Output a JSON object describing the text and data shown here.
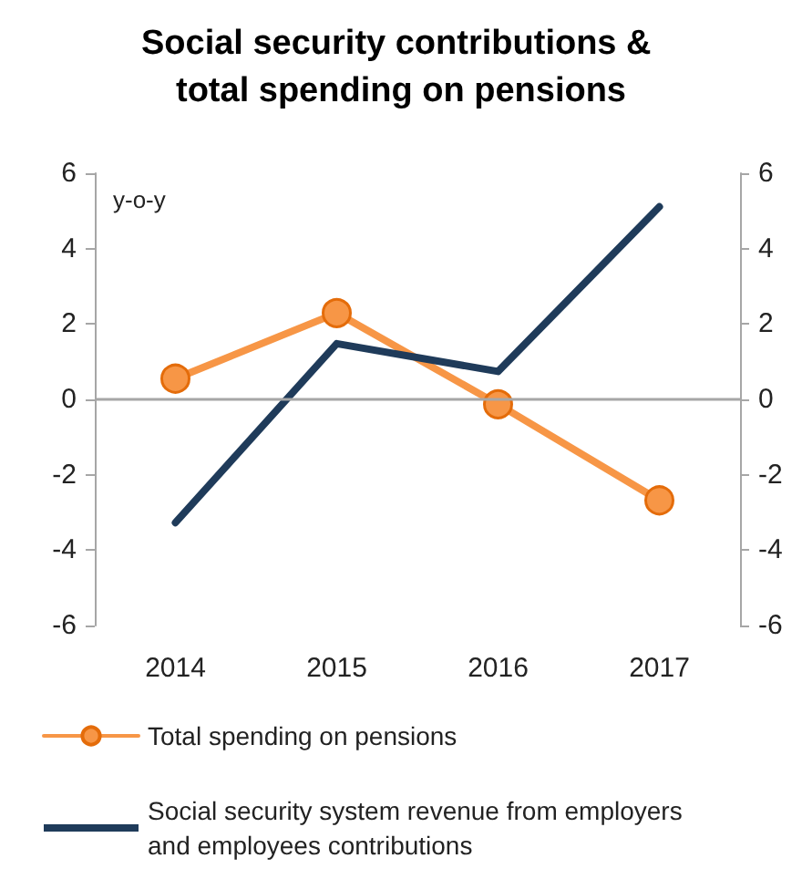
{
  "chart_data": {
    "type": "line",
    "title": "Social security contributions & total spending on pensions",
    "ylabel": "y-o-y",
    "categories": [
      "2014",
      "2015",
      "2016",
      "2017"
    ],
    "series": [
      {
        "name": "Total spending on pensions",
        "color": "#f79646",
        "marker": "circle",
        "values": [
          0.55,
          2.29,
          -0.13,
          -2.68
        ]
      },
      {
        "name": "Social security system revenue from employers and employees contributions",
        "color": "#1f3b5a",
        "marker": "none",
        "values": [
          -3.27,
          1.48,
          0.74,
          5.11
        ]
      }
    ],
    "ylim": [
      -6,
      6
    ],
    "yticks": [
      -6,
      -4,
      -2,
      0,
      2,
      4,
      6
    ],
    "y2lim": [
      -6,
      6
    ],
    "y2ticks": [
      -6,
      -4,
      -2,
      0,
      2,
      4,
      6
    ],
    "ref_lines": [
      {
        "axis": "y",
        "value": 0,
        "color": "#a6a6a6"
      }
    ],
    "grid": false,
    "legend": "bottom",
    "line_style": "solid"
  }
}
